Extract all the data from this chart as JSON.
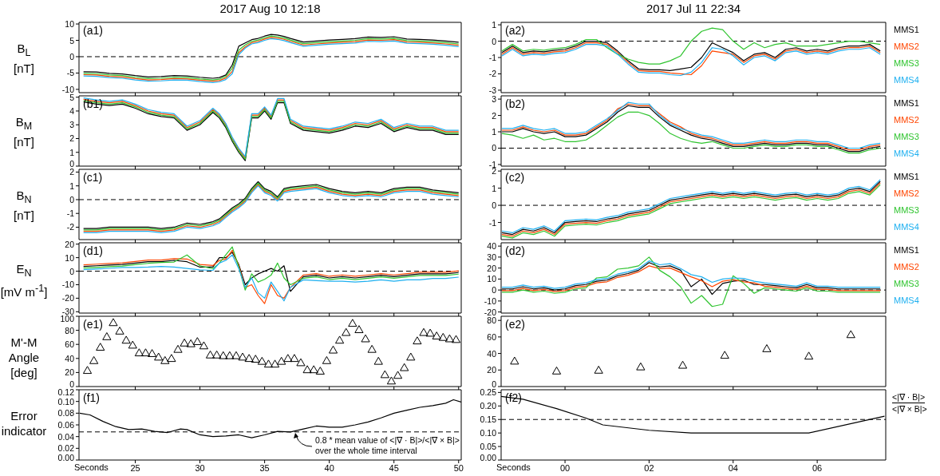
{
  "chart_data": [
    {
      "type": "line",
      "title": "2017 Aug 10 12:18",
      "ylabel": "B$_{L}$ [nT]",
      "annotations": [
        "(a1)"
      ],
      "tick_labels": "y",
      "xlim": [
        20.65,
        50.2
      ],
      "xticks": [
        25,
        30,
        35,
        40,
        45,
        50
      ],
      "ylim": [
        -11,
        10.5
      ],
      "yticks": [
        -10,
        -5,
        0,
        5,
        10
      ],
      "ref_lines": [
        {
          "axis": "y",
          "value": 0,
          "line_style": "dashed"
        }
      ],
      "x": [
        21,
        22,
        23,
        24,
        25,
        26,
        27,
        28,
        29,
        30,
        31,
        31.5,
        32,
        32.5,
        33,
        33.5,
        34,
        34.5,
        35,
        35.5,
        36,
        36.5,
        37,
        38,
        39,
        40,
        41,
        42,
        43,
        44,
        45,
        46,
        47,
        48,
        49,
        50
      ],
      "series": [
        {
          "color": "#000000",
          "values": [
            -4.6,
            -4.7,
            -5.1,
            -5.3,
            -5.8,
            -6.2,
            -6.1,
            -5.8,
            -5.9,
            -6.3,
            -6.6,
            -6.4,
            -5.6,
            -2.5,
            3.2,
            4.2,
            5.2,
            5.6,
            6.3,
            6.8,
            6.6,
            6.2,
            5.6,
            4.5,
            4.8,
            5.1,
            5.3,
            5.5,
            6.0,
            5.9,
            6.1,
            5.4,
            5.3,
            5.1,
            4.8,
            4.4
          ]
        },
        {
          "color": "#ff4500",
          "values": [
            -5.5,
            -5.6,
            -6.0,
            -6.2,
            -6.7,
            -7.1,
            -7.0,
            -6.7,
            -6.8,
            -7.2,
            -7.5,
            -7.3,
            -6.5,
            -4.5,
            1.2,
            3.0,
            4.3,
            4.7,
            5.4,
            5.9,
            5.7,
            5.3,
            4.7,
            3.6,
            3.9,
            4.2,
            4.4,
            4.6,
            5.1,
            5.0,
            5.2,
            4.5,
            4.4,
            4.2,
            3.9,
            3.5
          ]
        },
        {
          "color": "#2fc42f",
          "values": [
            -5.1,
            -5.2,
            -5.6,
            -5.8,
            -6.3,
            -6.7,
            -6.6,
            -6.3,
            -6.4,
            -6.8,
            -7.1,
            -6.9,
            -6.0,
            -3.5,
            2.0,
            3.6,
            4.7,
            5.1,
            5.8,
            6.3,
            6.1,
            5.7,
            5.1,
            4.0,
            4.3,
            4.6,
            4.8,
            5.0,
            5.5,
            5.4,
            5.6,
            4.9,
            4.8,
            4.6,
            4.3,
            3.9
          ]
        },
        {
          "color": "#1fb0f0",
          "values": [
            -5.9,
            -6.0,
            -6.4,
            -6.6,
            -7.1,
            -7.5,
            -7.4,
            -7.1,
            -7.2,
            -7.6,
            -7.9,
            -7.7,
            -7.0,
            -5.2,
            0.6,
            2.6,
            3.9,
            4.3,
            5.0,
            5.5,
            5.3,
            4.9,
            4.3,
            3.2,
            3.5,
            3.8,
            4.0,
            4.2,
            4.7,
            4.6,
            4.8,
            4.1,
            4.0,
            3.8,
            3.5,
            3.1
          ]
        }
      ]
    },
    {
      "type": "line",
      "title": "2017 Jul 11 22:34",
      "annotations": [
        "(a2)"
      ],
      "tick_labels": "y",
      "legend": "right",
      "xlim": [
        -1.52,
        7.63
      ],
      "xticks": [
        0,
        2,
        4,
        6
      ],
      "ylim": [
        -3.15,
        1.15
      ],
      "yticks": [
        -3,
        -2,
        -1,
        0,
        1
      ],
      "ref_lines": [
        {
          "axis": "y",
          "value": 0,
          "line_style": "dashed"
        }
      ],
      "x": [
        -1.5,
        -1.25,
        -1,
        -0.75,
        -0.5,
        -0.25,
        0,
        0.25,
        0.5,
        0.75,
        1,
        1.25,
        1.5,
        1.75,
        2,
        2.25,
        2.5,
        2.75,
        3,
        3.25,
        3.5,
        3.75,
        4,
        4.25,
        4.5,
        4.75,
        5,
        5.25,
        5.5,
        5.75,
        6,
        6.25,
        6.5,
        6.75,
        7,
        7.25,
        7.5
      ],
      "series": [
        {
          "name": "MMS1",
          "color": "#000000",
          "values": [
            -0.7,
            -0.3,
            -0.7,
            -0.6,
            -0.65,
            -0.55,
            -0.5,
            -0.3,
            0.0,
            0.0,
            -0.1,
            -0.6,
            -1.2,
            -1.7,
            -1.75,
            -1.75,
            -1.8,
            -1.7,
            -1.6,
            -1.0,
            -0.1,
            -0.4,
            -0.7,
            -1.2,
            -0.8,
            -0.7,
            -1.0,
            -0.5,
            -0.4,
            -0.6,
            -0.5,
            -0.6,
            -0.4,
            -0.3,
            -0.3,
            -0.2,
            -0.6
          ]
        },
        {
          "name": "MMS2",
          "color": "#ff4500",
          "values": [
            -0.8,
            -0.4,
            -0.8,
            -0.7,
            -0.75,
            -0.65,
            -0.6,
            -0.4,
            -0.1,
            -0.1,
            -0.2,
            -0.7,
            -1.3,
            -1.8,
            -1.85,
            -1.85,
            -1.95,
            -2.0,
            -2.05,
            -1.5,
            -0.6,
            -0.7,
            -0.8,
            -1.3,
            -0.9,
            -0.8,
            -1.1,
            -0.6,
            -0.5,
            -0.7,
            -0.6,
            -0.7,
            -0.5,
            -0.4,
            -0.4,
            -0.3,
            -0.7
          ]
        },
        {
          "name": "MMS3",
          "color": "#2fc42f",
          "values": [
            -0.6,
            -0.2,
            -0.6,
            -0.5,
            -0.55,
            -0.45,
            -0.4,
            -0.2,
            0.1,
            0.1,
            -0.4,
            -0.8,
            -1.1,
            -1.3,
            -1.4,
            -1.4,
            -1.2,
            -0.9,
            0.0,
            0.6,
            0.8,
            0.7,
            0.0,
            -0.5,
            -0.1,
            -0.4,
            -0.2,
            -0.1,
            -0.3,
            -0.3,
            -0.3,
            -0.2,
            -0.1,
            0.0,
            0.0,
            -0.1,
            -0.2
          ]
        },
        {
          "name": "MMS4",
          "color": "#1fb0f0",
          "values": [
            -0.9,
            -0.5,
            -0.9,
            -0.8,
            -0.85,
            -0.75,
            -0.7,
            -0.5,
            -0.2,
            -0.2,
            -0.3,
            -0.8,
            -1.4,
            -1.9,
            -1.95,
            -1.95,
            -2.05,
            -2.1,
            -1.9,
            -1.3,
            -0.4,
            -0.5,
            -0.9,
            -1.45,
            -1.0,
            -0.9,
            -1.2,
            -0.7,
            -0.6,
            -0.8,
            -0.7,
            -0.8,
            -0.6,
            -0.5,
            -0.5,
            -0.4,
            -0.8
          ]
        }
      ]
    },
    {
      "type": "line",
      "ylabel": "B$_{M}$ [nT]",
      "annotations": [
        "(b1)"
      ],
      "tick_labels": "y",
      "xlim": [
        20.65,
        50.2
      ],
      "xticks": [
        25,
        30,
        35,
        40,
        45,
        50
      ],
      "ylim": [
        0,
        5.1
      ],
      "yticks": [
        0,
        1,
        2,
        3,
        4,
        5
      ],
      "x": [
        21,
        22,
        23,
        24,
        25,
        26,
        27,
        28,
        29,
        30,
        31,
        31.5,
        32,
        32.5,
        33,
        33.5,
        34,
        34.5,
        35,
        35.5,
        36,
        36.5,
        37,
        38,
        39,
        40,
        41,
        42,
        43,
        44,
        45,
        46,
        47,
        48,
        49,
        50
      ],
      "series": [
        {
          "color": "#000000",
          "values": [
            4.65,
            4.5,
            4.4,
            4.5,
            4.2,
            3.8,
            3.6,
            3.5,
            2.6,
            3.0,
            3.9,
            3.5,
            2.8,
            1.8,
            1.0,
            0.4,
            3.5,
            3.5,
            4.0,
            3.4,
            4.6,
            4.6,
            3.1,
            2.6,
            2.5,
            2.4,
            2.6,
            2.9,
            2.8,
            3.1,
            2.5,
            2.8,
            2.6,
            2.6,
            2.3,
            2.3
          ]
        },
        {
          "color": "#ff4500",
          "values": [
            4.85,
            4.7,
            4.6,
            4.7,
            4.4,
            4.0,
            3.8,
            3.7,
            2.8,
            3.2,
            4.1,
            3.7,
            3.0,
            2.0,
            1.2,
            0.6,
            3.7,
            3.7,
            4.2,
            3.6,
            4.8,
            4.8,
            3.3,
            2.8,
            2.7,
            2.6,
            2.8,
            3.1,
            3.0,
            3.3,
            2.7,
            3.0,
            2.8,
            2.8,
            2.5,
            2.5
          ]
        },
        {
          "color": "#2fc42f",
          "values": [
            4.75,
            4.6,
            4.5,
            4.6,
            4.3,
            3.9,
            3.7,
            3.6,
            2.7,
            3.1,
            4.0,
            3.6,
            2.9,
            1.9,
            1.1,
            0.5,
            3.6,
            3.6,
            4.1,
            3.5,
            4.7,
            4.7,
            3.2,
            2.7,
            2.6,
            2.5,
            2.7,
            3.0,
            2.9,
            3.2,
            2.6,
            2.9,
            2.7,
            2.7,
            2.4,
            2.4
          ]
        },
        {
          "color": "#1fb0f0",
          "values": [
            4.95,
            4.8,
            4.7,
            4.8,
            4.5,
            4.1,
            3.9,
            3.8,
            2.9,
            3.3,
            4.2,
            3.8,
            3.1,
            2.1,
            1.3,
            0.7,
            3.8,
            3.8,
            4.3,
            3.7,
            4.9,
            4.9,
            3.4,
            2.9,
            2.8,
            2.7,
            2.9,
            3.2,
            3.1,
            3.4,
            2.8,
            3.1,
            2.9,
            2.9,
            2.6,
            2.6
          ]
        }
      ]
    },
    {
      "type": "line",
      "annotations": [
        "(b2)"
      ],
      "tick_labels": "y",
      "legend": "right",
      "xlim": [
        -1.52,
        7.63
      ],
      "xticks": [
        0,
        2,
        4,
        6
      ],
      "ylim": [
        -1.1,
        3.2
      ],
      "yticks": [
        -1,
        0,
        1,
        2,
        3
      ],
      "ref_lines": [
        {
          "axis": "y",
          "value": 0,
          "line_style": "dashed"
        }
      ],
      "x": [
        -1.5,
        -1.25,
        -1,
        -0.75,
        -0.5,
        -0.25,
        0,
        0.25,
        0.5,
        0.75,
        1,
        1.25,
        1.5,
        1.75,
        2,
        2.25,
        2.5,
        2.75,
        3,
        3.25,
        3.5,
        3.75,
        4,
        4.25,
        4.5,
        4.75,
        5,
        5.25,
        5.5,
        5.75,
        6,
        6.25,
        6.5,
        6.75,
        7,
        7.25,
        7.5
      ],
      "series": [
        {
          "name": "MMS1",
          "color": "#000000",
          "values": [
            1.0,
            1.0,
            1.2,
            1.0,
            0.9,
            1.0,
            0.7,
            0.7,
            0.8,
            1.2,
            1.6,
            2.2,
            2.6,
            2.5,
            2.5,
            1.9,
            1.4,
            1.1,
            0.8,
            0.6,
            0.5,
            0.3,
            0.1,
            0.1,
            0.2,
            0.3,
            0.2,
            0.2,
            0.3,
            0.3,
            0.2,
            0.2,
            0.0,
            -0.2,
            -0.2,
            0.0,
            0.1
          ]
        },
        {
          "name": "MMS2",
          "color": "#ff4500",
          "values": [
            1.1,
            1.1,
            1.3,
            1.1,
            1.0,
            1.1,
            0.8,
            0.8,
            0.9,
            1.3,
            1.7,
            2.4,
            2.7,
            2.6,
            2.6,
            2.1,
            1.6,
            1.3,
            0.9,
            0.7,
            0.6,
            0.4,
            0.2,
            0.2,
            0.3,
            0.4,
            0.3,
            0.3,
            0.4,
            0.4,
            0.3,
            0.3,
            0.1,
            -0.1,
            -0.1,
            0.1,
            0.2
          ]
        },
        {
          "name": "MMS3",
          "color": "#2fc42f",
          "values": [
            0.9,
            0.8,
            0.6,
            0.8,
            0.5,
            0.6,
            0.4,
            0.4,
            0.5,
            0.9,
            1.4,
            1.9,
            2.2,
            2.2,
            2.0,
            1.5,
            0.9,
            0.6,
            0.4,
            0.3,
            0.4,
            0.2,
            0.0,
            0.0,
            0.1,
            0.2,
            0.1,
            0.1,
            0.2,
            0.2,
            0.1,
            0.1,
            -0.1,
            -0.3,
            -0.3,
            -0.1,
            0.0
          ]
        },
        {
          "name": "MMS4",
          "color": "#1fb0f0",
          "values": [
            1.2,
            1.2,
            1.4,
            1.2,
            1.1,
            1.2,
            0.9,
            0.9,
            1.0,
            1.4,
            1.8,
            2.3,
            2.8,
            2.7,
            2.7,
            2.0,
            1.5,
            1.2,
            1.0,
            0.8,
            0.7,
            0.5,
            0.3,
            0.3,
            0.4,
            0.5,
            0.4,
            0.4,
            0.5,
            0.5,
            0.4,
            0.4,
            0.2,
            0.0,
            0.0,
            0.2,
            0.3
          ]
        }
      ]
    },
    {
      "type": "line",
      "ylabel": "B$_{N}$ [nT]",
      "annotations": [
        "(c1)"
      ],
      "tick_labels": "y",
      "xlim": [
        20.65,
        50.2
      ],
      "xticks": [
        25,
        30,
        35,
        40,
        45,
        50
      ],
      "ylim": [
        -2.9,
        2.2
      ],
      "yticks": [
        -2,
        -1,
        0,
        1,
        2
      ],
      "ref_lines": [
        {
          "axis": "y",
          "value": 0,
          "line_style": "dashed"
        }
      ],
      "x": [
        21,
        22,
        23,
        24,
        25,
        26,
        27,
        28,
        29,
        30,
        31,
        31.5,
        32,
        32.5,
        33,
        33.5,
        34,
        34.5,
        35,
        35.5,
        36,
        36.5,
        37,
        38,
        39,
        40,
        41,
        42,
        43,
        44,
        45,
        46,
        47,
        48,
        49,
        50
      ],
      "series": [
        {
          "color": "#000000",
          "values": [
            -2.1,
            -2.1,
            -2.0,
            -2.0,
            -2.0,
            -2.0,
            -2.1,
            -2.0,
            -1.7,
            -1.8,
            -1.6,
            -1.4,
            -1.0,
            -0.6,
            -0.3,
            0.1,
            0.8,
            1.3,
            0.8,
            0.6,
            0.2,
            0.8,
            0.9,
            1.0,
            1.1,
            0.8,
            0.6,
            0.5,
            0.6,
            0.5,
            0.8,
            0.9,
            0.9,
            0.7,
            0.6,
            0.5
          ]
        },
        {
          "color": "#ff4500",
          "values": [
            -2.3,
            -2.3,
            -2.2,
            -2.2,
            -2.2,
            -2.2,
            -2.3,
            -2.2,
            -1.9,
            -2.0,
            -1.8,
            -1.6,
            -1.2,
            -0.8,
            -0.5,
            -0.1,
            0.6,
            1.1,
            0.6,
            0.4,
            0.0,
            0.6,
            0.7,
            0.8,
            0.9,
            0.6,
            0.4,
            0.3,
            0.4,
            0.3,
            0.6,
            0.7,
            0.7,
            0.5,
            0.4,
            0.3
          ]
        },
        {
          "color": "#2fc42f",
          "values": [
            -2.2,
            -2.2,
            -2.1,
            -2.1,
            -2.1,
            -2.1,
            -2.2,
            -2.1,
            -1.8,
            -1.9,
            -1.7,
            -1.5,
            -1.1,
            -0.7,
            -0.4,
            0.0,
            0.7,
            1.2,
            0.7,
            0.5,
            0.1,
            0.7,
            0.8,
            0.9,
            1.0,
            0.7,
            0.5,
            0.4,
            0.5,
            0.4,
            0.7,
            0.8,
            0.8,
            0.6,
            0.5,
            0.4
          ]
        },
        {
          "color": "#1fb0f0",
          "values": [
            -2.4,
            -2.4,
            -2.3,
            -2.3,
            -2.3,
            -2.3,
            -2.4,
            -2.3,
            -2.0,
            -2.1,
            -1.9,
            -1.7,
            -1.3,
            -0.9,
            -0.6,
            -0.2,
            0.5,
            1.0,
            0.5,
            0.3,
            -0.1,
            0.5,
            0.6,
            0.7,
            0.8,
            0.5,
            0.3,
            0.2,
            0.3,
            0.2,
            0.5,
            0.6,
            0.6,
            0.4,
            0.3,
            0.2
          ]
        }
      ]
    },
    {
      "type": "line",
      "annotations": [
        "(c2)"
      ],
      "tick_labels": "y",
      "legend": "right",
      "xlim": [
        -1.52,
        7.63
      ],
      "xticks": [
        0,
        2,
        4,
        6
      ],
      "ylim": [
        -2,
        2.1
      ],
      "yticks": [
        -1,
        0,
        1,
        2
      ],
      "ref_lines": [
        {
          "axis": "y",
          "value": 0,
          "line_style": "dashed"
        }
      ],
      "x": [
        -1.5,
        -1.25,
        -1,
        -0.75,
        -0.5,
        -0.25,
        0,
        0.25,
        0.5,
        0.75,
        1,
        1.25,
        1.5,
        1.75,
        2,
        2.25,
        2.5,
        2.75,
        3,
        3.25,
        3.5,
        3.75,
        4,
        4.25,
        4.5,
        4.75,
        5,
        5.25,
        5.5,
        5.75,
        6,
        6.25,
        6.5,
        6.75,
        7,
        7.25,
        7.5
      ],
      "series": [
        {
          "name": "MMS1",
          "color": "#000000",
          "values": [
            -1.6,
            -1.7,
            -1.4,
            -1.5,
            -1.3,
            -1.6,
            -1.0,
            -0.95,
            -0.9,
            -0.95,
            -0.8,
            -0.7,
            -0.5,
            -0.4,
            -0.3,
            0.0,
            0.3,
            0.4,
            0.5,
            0.6,
            0.7,
            0.6,
            0.7,
            0.6,
            0.7,
            0.6,
            0.5,
            0.6,
            0.65,
            0.5,
            0.6,
            0.5,
            0.6,
            0.9,
            1.0,
            0.8,
            1.4
          ]
        },
        {
          "name": "MMS2",
          "color": "#ff4500",
          "values": [
            -1.7,
            -1.8,
            -1.5,
            -1.6,
            -1.4,
            -1.7,
            -1.1,
            -1.05,
            -1.0,
            -1.05,
            -0.9,
            -0.8,
            -0.6,
            -0.5,
            -0.4,
            -0.1,
            0.2,
            0.3,
            0.4,
            0.5,
            0.6,
            0.5,
            0.6,
            0.5,
            0.6,
            0.5,
            0.4,
            0.5,
            0.55,
            0.4,
            0.5,
            0.4,
            0.5,
            0.8,
            0.9,
            0.7,
            1.3
          ]
        },
        {
          "name": "MMS3",
          "color": "#2fc42f",
          "values": [
            -1.8,
            -1.9,
            -1.6,
            -1.7,
            -1.5,
            -1.8,
            -1.2,
            -1.15,
            -1.1,
            -1.15,
            -1.0,
            -0.9,
            -0.7,
            -0.6,
            -0.5,
            -0.2,
            0.1,
            0.2,
            0.3,
            0.4,
            0.5,
            0.4,
            0.5,
            0.4,
            0.5,
            0.4,
            0.3,
            0.4,
            0.45,
            0.3,
            0.4,
            0.3,
            0.4,
            0.7,
            0.8,
            0.6,
            1.2
          ]
        },
        {
          "name": "MMS4",
          "color": "#1fb0f0",
          "values": [
            -1.5,
            -1.6,
            -1.3,
            -1.4,
            -1.2,
            -1.5,
            -0.9,
            -0.85,
            -0.8,
            -0.85,
            -0.7,
            -0.6,
            -0.4,
            -0.3,
            -0.2,
            0.1,
            0.4,
            0.5,
            0.6,
            0.7,
            0.8,
            0.7,
            0.8,
            0.7,
            0.8,
            0.7,
            0.6,
            0.7,
            0.75,
            0.6,
            0.7,
            0.6,
            0.7,
            1.0,
            1.1,
            0.9,
            1.5
          ]
        }
      ]
    },
    {
      "type": "line",
      "ylabel": "E$_{N}$ [mV m$^{-1}$]",
      "annotations": [
        "(d1)"
      ],
      "tick_labels": "y",
      "xlim": [
        20.65,
        50.2
      ],
      "xticks": [
        25,
        30,
        35,
        40,
        45,
        50
      ],
      "ylim": [
        -31,
        21
      ],
      "yticks": [
        -30,
        -20,
        -10,
        0,
        10,
        20
      ],
      "ref_lines": [
        {
          "axis": "y",
          "value": 0,
          "line_style": "dashed"
        }
      ],
      "x": [
        21,
        22,
        23,
        24,
        25,
        26,
        27,
        28,
        29,
        30,
        31,
        31.5,
        32,
        32.5,
        33,
        33.5,
        34,
        34.5,
        35,
        35.5,
        36,
        36.5,
        37,
        38,
        39,
        40,
        41,
        42,
        43,
        44,
        45,
        46,
        47,
        48,
        49,
        50
      ],
      "series": [
        {
          "color": "#000000",
          "values": [
            3.5,
            4,
            4.5,
            5,
            6,
            7,
            7,
            8,
            7,
            3,
            3,
            10,
            10,
            14,
            5,
            -10,
            -5,
            -2,
            0,
            2,
            0,
            4,
            -15,
            -4,
            -3,
            -5,
            -4,
            -5,
            -4,
            -3,
            -4,
            -3,
            -2,
            -2,
            -2,
            -1
          ]
        },
        {
          "color": "#ff4500",
          "values": [
            4.7,
            5.2,
            5.7,
            6.2,
            7.2,
            8.2,
            8.2,
            9.2,
            9,
            5,
            4.2,
            8,
            9,
            15.5,
            4,
            -12,
            -10,
            -18,
            -24,
            -10,
            -18,
            -20,
            -12,
            -2.8,
            -1.8,
            -3.8,
            -2.8,
            -3.8,
            -2.8,
            -1.8,
            -2.8,
            -1.8,
            -0.8,
            -0.8,
            -0.8,
            0.2
          ]
        },
        {
          "color": "#2fc42f",
          "values": [
            2.3,
            2.8,
            3.3,
            3.8,
            4.8,
            5.8,
            6.5,
            6.8,
            12,
            4,
            1.8,
            6,
            12,
            18,
            3,
            -14,
            -2,
            -8,
            -6,
            -3,
            6,
            -5,
            -10,
            -5.2,
            -4.2,
            -6.2,
            -5.2,
            -6.2,
            -5.2,
            -4.2,
            -5.2,
            -4.2,
            -3.2,
            -3.2,
            -3.2,
            -2.2
          ]
        },
        {
          "color": "#1fb0f0",
          "values": [
            1.1,
            1.6,
            2.1,
            2.8,
            2.8,
            3,
            3.5,
            3,
            2,
            1,
            0.6,
            6,
            8,
            12,
            2,
            -12,
            -5,
            -16,
            -20,
            -8,
            -15,
            -22,
            -12,
            -6.4,
            -7,
            -7.4,
            -7.4,
            -8,
            -7.4,
            -6.4,
            -7.4,
            -6.4,
            -6.4,
            -5.4,
            -5.4,
            -4.4
          ]
        }
      ]
    },
    {
      "type": "line",
      "annotations": [
        "(d2)"
      ],
      "tick_labels": "y",
      "legend": "right",
      "xlim": [
        -1.52,
        7.63
      ],
      "xticks": [
        0,
        2,
        4,
        6
      ],
      "ylim": [
        -21,
        43
      ],
      "yticks": [
        -20,
        -10,
        0,
        10,
        20,
        30,
        40
      ],
      "ref_lines": [
        {
          "axis": "y",
          "value": 0,
          "line_style": "dashed"
        }
      ],
      "x": [
        -1.5,
        -1.25,
        -1,
        -0.75,
        -0.5,
        -0.25,
        0,
        0.25,
        0.5,
        0.75,
        1,
        1.25,
        1.5,
        1.75,
        2,
        2.25,
        2.5,
        2.75,
        3,
        3.25,
        3.5,
        3.75,
        4,
        4.25,
        4.5,
        4.75,
        5,
        5.25,
        5.5,
        5.75,
        6,
        6.25,
        6.5,
        6.75,
        7,
        7.25,
        7.5
      ],
      "series": [
        {
          "name": "MMS1",
          "color": "#000000",
          "values": [
            1,
            1,
            3,
            1,
            2,
            0,
            1,
            4,
            5,
            8,
            9,
            13,
            15,
            18,
            25,
            21,
            22,
            18,
            3,
            10,
            -4,
            6,
            8,
            9,
            5,
            5,
            4,
            3,
            2,
            5,
            2,
            2,
            1,
            1,
            1,
            1,
            1
          ]
        },
        {
          "name": "MMS2",
          "color": "#ff4500",
          "values": [
            -0.5,
            -0.5,
            1.5,
            -0.5,
            0.5,
            -1.5,
            -0.5,
            2.5,
            3.5,
            6.5,
            7.5,
            11.5,
            13.5,
            16.5,
            22,
            19.5,
            20,
            16,
            12,
            8.5,
            3,
            8,
            9.5,
            7.5,
            6.5,
            3.5,
            2.5,
            1.5,
            0.5,
            3.5,
            0.5,
            0.5,
            -0.5,
            -0.5,
            -0.5,
            -0.5,
            -0.5
          ]
        },
        {
          "name": "MMS3",
          "color": "#2fc42f",
          "values": [
            -2,
            -2,
            0,
            -2,
            -1,
            -3,
            -2,
            1,
            2,
            11,
            12,
            19,
            20,
            22,
            30,
            18,
            12,
            3,
            -12,
            -5,
            -15,
            -13,
            13,
            6,
            -3,
            2,
            1,
            0,
            -1,
            2,
            -1,
            -1,
            -2,
            -2,
            -2,
            -2,
            -2
          ]
        },
        {
          "name": "MMS4",
          "color": "#1fb0f0",
          "values": [
            2.5,
            2.5,
            4.5,
            2.5,
            3.5,
            1.5,
            2.5,
            5.5,
            6.5,
            9.5,
            10.5,
            14.5,
            16.5,
            19.5,
            26.5,
            23,
            24,
            19.5,
            14,
            12,
            7,
            10,
            11,
            10.5,
            8,
            6.5,
            5.5,
            4.5,
            3.5,
            6.5,
            3.5,
            3.5,
            2.5,
            2.5,
            2.5,
            2.5,
            2.5
          ]
        }
      ]
    },
    {
      "type": "scatter",
      "marker": "triangle",
      "ylabel": "M'-M Angle [deg]",
      "annotations": [
        "(e1)"
      ],
      "tick_labels": "y",
      "xlim": [
        20.65,
        50.2
      ],
      "xticks": [
        25,
        30,
        35,
        40,
        45,
        50
      ],
      "ylim": [
        0,
        100
      ],
      "yticks": [
        0,
        20,
        40,
        60,
        80,
        100
      ],
      "color": "#000000",
      "x": [
        21.3,
        21.8,
        22.3,
        22.8,
        23.3,
        23.8,
        24.3,
        24.8,
        25.3,
        25.8,
        26.3,
        26.8,
        27.3,
        27.8,
        28.3,
        28.8,
        29.3,
        29.8,
        30.3,
        30.8,
        31.3,
        31.8,
        32.3,
        32.8,
        33.3,
        33.8,
        34.3,
        34.8,
        35.3,
        35.8,
        36.3,
        36.8,
        37.3,
        37.8,
        38.3,
        38.8,
        39.3,
        39.8,
        40.3,
        40.8,
        41.3,
        41.8,
        42.3,
        42.8,
        43.3,
        43.8,
        44.3,
        44.8,
        45.3,
        45.8,
        46.3,
        46.8,
        47.3,
        47.8,
        48.3,
        48.8,
        49.3,
        49.8
      ],
      "values": [
        22,
        36,
        55,
        70,
        90,
        78,
        65,
        58,
        47,
        47,
        46,
        41,
        36,
        39,
        52,
        61,
        60,
        63,
        57,
        44,
        44,
        43,
        43,
        43,
        41,
        39,
        38,
        35,
        31,
        31,
        35,
        39,
        39,
        33,
        23,
        23,
        21,
        36,
        51,
        65,
        76,
        89,
        80,
        67,
        52,
        35,
        16,
        7,
        15,
        26,
        41,
        64,
        76,
        75,
        71,
        69,
        67,
        66
      ]
    },
    {
      "type": "scatter",
      "marker": "triangle",
      "annotations": [
        "(e2)"
      ],
      "tick_labels": "y",
      "xlim": [
        -1.52,
        7.63
      ],
      "xticks": [
        0,
        2,
        4,
        6
      ],
      "ylim": [
        0,
        85
      ],
      "yticks": [
        0,
        20,
        40,
        60,
        80
      ],
      "color": "#000000",
      "x": [
        -1.2,
        -0.2,
        0.8,
        1.8,
        2.8,
        3.8,
        4.8,
        5.8,
        6.8
      ],
      "values": [
        30,
        18,
        19,
        23,
        25,
        37,
        45,
        36,
        62
      ]
    },
    {
      "type": "line",
      "ylabel": "Error indicator",
      "xlabel": "Seconds",
      "annotations": [
        "(f1)",
        {
          "text": "0.8 * mean value of <|∇ · B|>/<|∇ × B|> over the whole time interval",
          "x": 37.3,
          "y": 0.048
        }
      ],
      "xlim": [
        20.65,
        50.2
      ],
      "xticks": [
        25,
        30,
        35,
        40,
        45,
        50
      ],
      "ylim": [
        0,
        0.12
      ],
      "yticks": [
        {
          "value": 0,
          "label": "0.00"
        },
        {
          "value": 0.02,
          "label": "0.02"
        },
        {
          "value": 0.04,
          "label": "0.04"
        },
        {
          "value": 0.06,
          "label": "0.06"
        },
        {
          "value": 0.08,
          "label": "0.08"
        },
        {
          "value": 0.1,
          "label": "0.10"
        },
        {
          "value": 0.12,
          "label": "0.12"
        }
      ],
      "ref_lines": [
        {
          "axis": "y",
          "value": 0.048,
          "line_style": "dashed"
        }
      ],
      "x": [
        20.7,
        21.5,
        22.5,
        23.5,
        24.5,
        25.5,
        26.5,
        27.5,
        28.5,
        29,
        30,
        31,
        32,
        33,
        34,
        35,
        36,
        37,
        38,
        39,
        40,
        41,
        42,
        43,
        44,
        45,
        46,
        47,
        48,
        49,
        49.6,
        50.2
      ],
      "series": [
        {
          "color": "#000000",
          "values": [
            0.08,
            0.077,
            0.066,
            0.057,
            0.052,
            0.053,
            0.049,
            0.047,
            0.053,
            0.052,
            0.043,
            0.04,
            0.041,
            0.043,
            0.038,
            0.043,
            0.049,
            0.048,
            0.053,
            0.058,
            0.056,
            0.056,
            0.06,
            0.065,
            0.072,
            0.08,
            0.085,
            0.09,
            0.093,
            0.097,
            0.103,
            0.099
          ]
        }
      ]
    },
    {
      "type": "line",
      "xlabel": "Seconds",
      "annotations": [
        "(f2)",
        "<|∇ · B|>",
        "<|∇ × B|>"
      ],
      "xlim": [
        -1.52,
        7.63
      ],
      "xticks": [
        {
          "value": 0,
          "label": "00"
        },
        {
          "value": 2,
          "label": "02"
        },
        {
          "value": 4,
          "label": "04"
        },
        {
          "value": 6,
          "label": "06"
        }
      ],
      "ylim": [
        0,
        0.26
      ],
      "yticks": [
        {
          "value": 0,
          "label": "0.00"
        },
        {
          "value": 0.05,
          "label": "0.05"
        },
        {
          "value": 0.1,
          "label": "0.10"
        },
        {
          "value": 0.15,
          "label": "0.15"
        },
        {
          "value": 0.2,
          "label": "0.20"
        },
        {
          "value": 0.25,
          "label": "0.25"
        }
      ],
      "ref_lines": [
        {
          "axis": "y",
          "value": 0.15,
          "line_style": "dashed"
        }
      ],
      "x": [
        -1.52,
        -1.0,
        -0.2,
        0.5,
        0.9,
        2.0,
        3.0,
        4.0,
        5.0,
        5.8,
        7.6
      ],
      "series": [
        {
          "color": "#000000",
          "values": [
            0.235,
            0.225,
            0.19,
            0.155,
            0.13,
            0.11,
            0.1,
            0.1,
            0.1,
            0.1,
            0.162
          ]
        }
      ]
    }
  ]
}
